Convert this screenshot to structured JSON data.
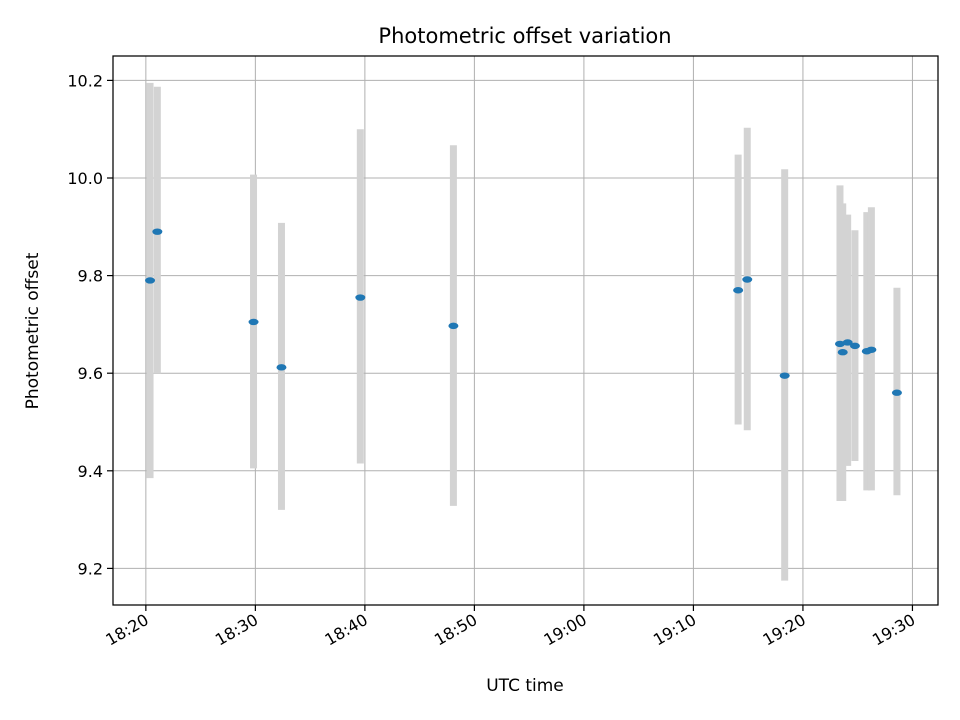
{
  "chart_data": {
    "type": "scatter",
    "title": "Photometric offset variation",
    "xlabel": "UTC time",
    "ylabel": "Photometric offset",
    "x_axis_type": "time",
    "xlim": [
      "18:17:00",
      "19:32:20"
    ],
    "ylim": [
      9.125,
      10.25
    ],
    "x_ticks": [
      "18:20",
      "18:30",
      "18:40",
      "18:50",
      "19:00",
      "19:10",
      "19:20",
      "19:30"
    ],
    "y_ticks": [
      9.2,
      9.4,
      9.6,
      9.8,
      10.0,
      10.2
    ],
    "grid": true,
    "point_color": "#1f77b4",
    "errorbar_color": "#d3d3d3",
    "points": [
      {
        "x": "18:20:23",
        "y": 9.79,
        "err_low": 9.385,
        "err_high": 10.195
      },
      {
        "x": "18:21:03",
        "y": 9.89,
        "err_low": 9.6,
        "err_high": 10.187
      },
      {
        "x": "18:29:50",
        "y": 9.705,
        "err_low": 9.405,
        "err_high": 10.007
      },
      {
        "x": "18:32:23",
        "y": 9.612,
        "err_low": 9.32,
        "err_high": 9.908
      },
      {
        "x": "18:39:35",
        "y": 9.755,
        "err_low": 9.415,
        "err_high": 10.1
      },
      {
        "x": "18:48:05",
        "y": 9.697,
        "err_low": 9.328,
        "err_high": 10.067
      },
      {
        "x": "19:14:05",
        "y": 9.77,
        "err_low": 9.495,
        "err_high": 10.048
      },
      {
        "x": "19:14:55",
        "y": 9.792,
        "err_low": 9.483,
        "err_high": 10.103
      },
      {
        "x": "19:18:20",
        "y": 9.595,
        "err_low": 9.175,
        "err_high": 10.018
      },
      {
        "x": "19:23:23",
        "y": 9.66,
        "err_low": 9.338,
        "err_high": 9.985
      },
      {
        "x": "19:23:38",
        "y": 9.643,
        "err_low": 9.338,
        "err_high": 9.948
      },
      {
        "x": "19:24:05",
        "y": 9.663,
        "err_low": 9.41,
        "err_high": 9.925
      },
      {
        "x": "19:24:45",
        "y": 9.656,
        "err_low": 9.42,
        "err_high": 9.893
      },
      {
        "x": "19:25:50",
        "y": 9.645,
        "err_low": 9.36,
        "err_high": 9.93
      },
      {
        "x": "19:26:15",
        "y": 9.648,
        "err_low": 9.36,
        "err_high": 9.94
      },
      {
        "x": "19:28:35",
        "y": 9.56,
        "err_low": 9.35,
        "err_high": 9.775
      }
    ]
  }
}
